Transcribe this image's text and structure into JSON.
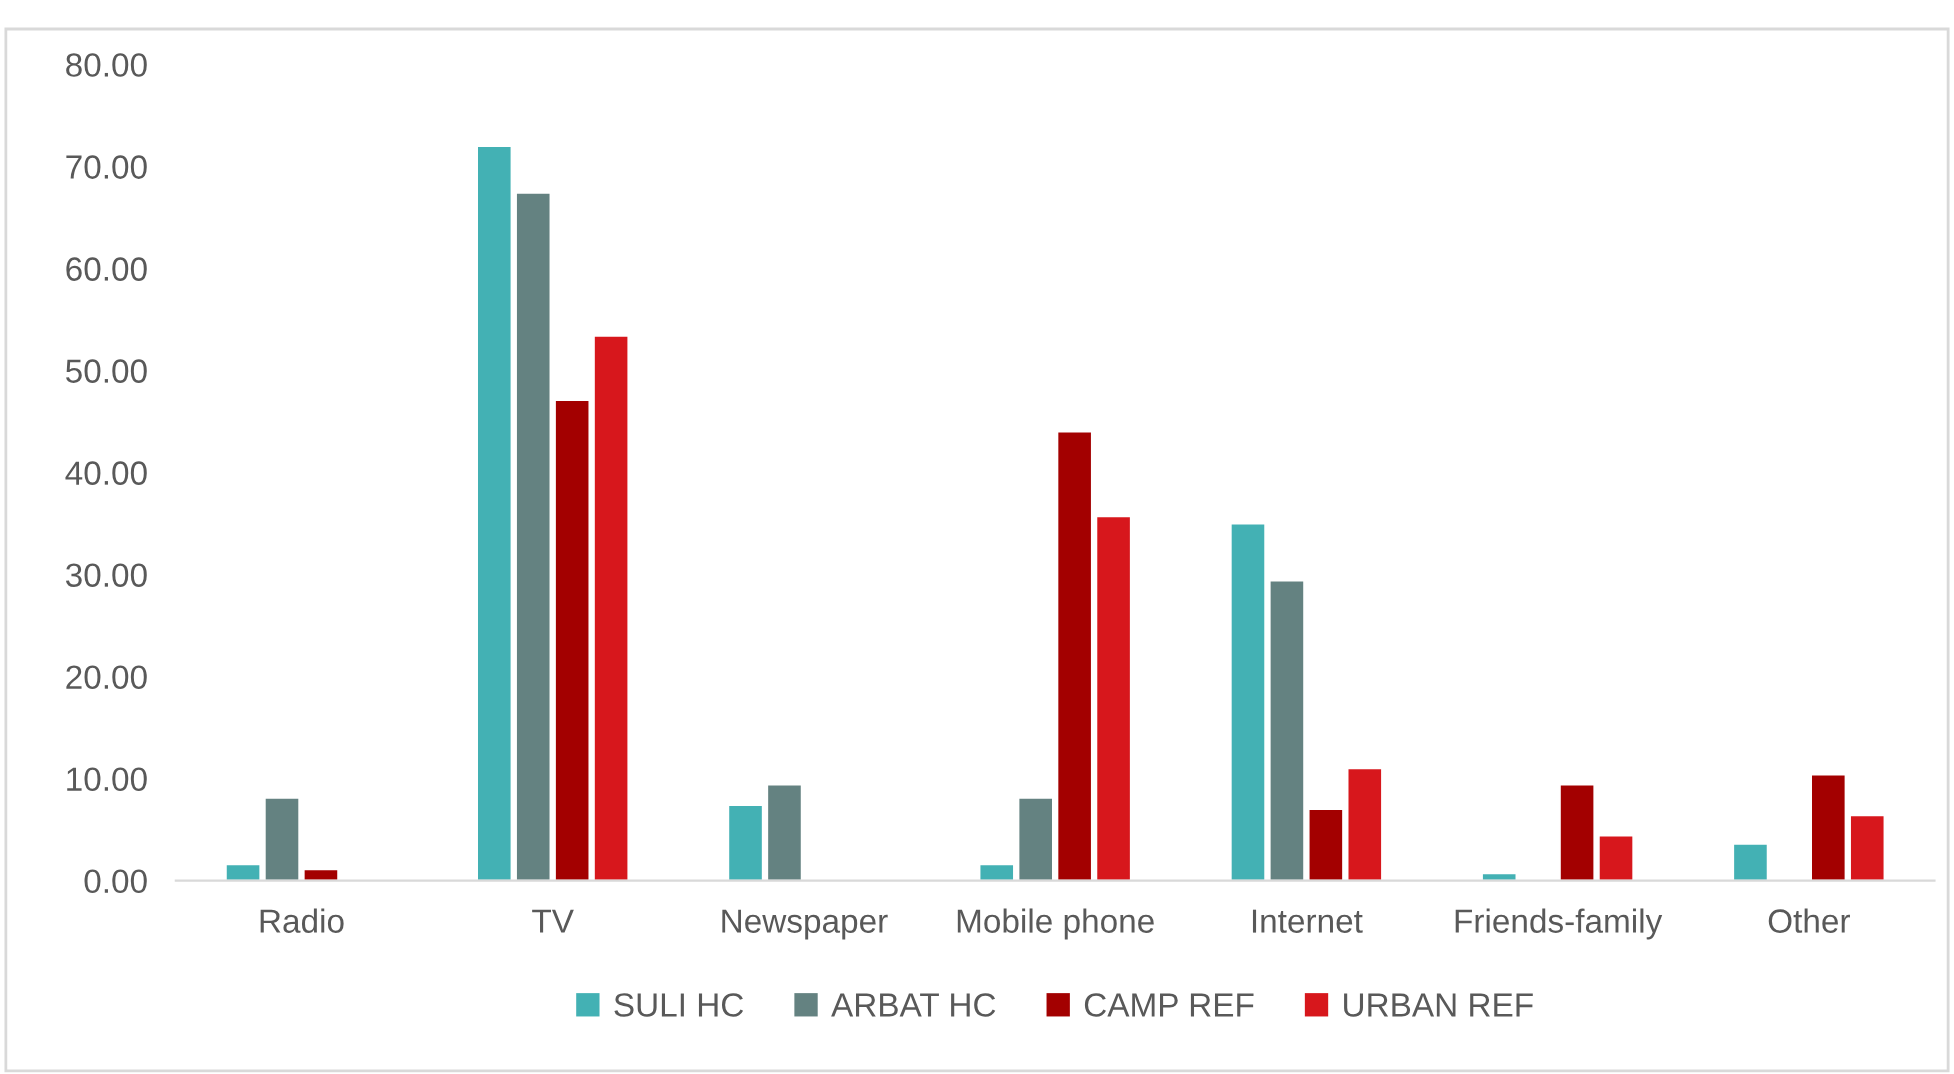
{
  "chart_data": {
    "type": "bar",
    "categories": [
      "Radio",
      "TV",
      "Newspaper",
      "Mobile phone",
      "Internet",
      "Friends-family",
      "Other"
    ],
    "series": [
      {
        "name": "SULI HC",
        "color": "#43b1b4",
        "values": [
          1.6,
          72.0,
          7.4,
          1.6,
          35.0,
          0.7,
          3.6
        ]
      },
      {
        "name": "ARBAT HC",
        "color": "#648281",
        "values": [
          8.1,
          67.4,
          9.4,
          8.1,
          29.4,
          null,
          null
        ]
      },
      {
        "name": "CAMP REF",
        "color": "#a30000",
        "values": [
          1.1,
          47.1,
          null,
          44.0,
          7.0,
          9.4,
          10.4
        ]
      },
      {
        "name": "URBAN REF",
        "color": "#d7171c",
        "values": [
          null,
          53.4,
          null,
          35.7,
          11.0,
          4.4,
          6.4
        ]
      }
    ],
    "ylim": [
      0,
      80
    ],
    "yticks": [
      {
        "value": 0,
        "label": "0.00"
      },
      {
        "value": 10,
        "label": "10.00"
      },
      {
        "value": 20,
        "label": "20.00"
      },
      {
        "value": 30,
        "label": "30.00"
      },
      {
        "value": 40,
        "label": "40.00"
      },
      {
        "value": 50,
        "label": "50.00"
      },
      {
        "value": 60,
        "label": "60.00"
      },
      {
        "value": 70,
        "label": "70.00"
      },
      {
        "value": 80,
        "label": "80.00"
      }
    ],
    "grid": false,
    "legend": "bottom"
  }
}
